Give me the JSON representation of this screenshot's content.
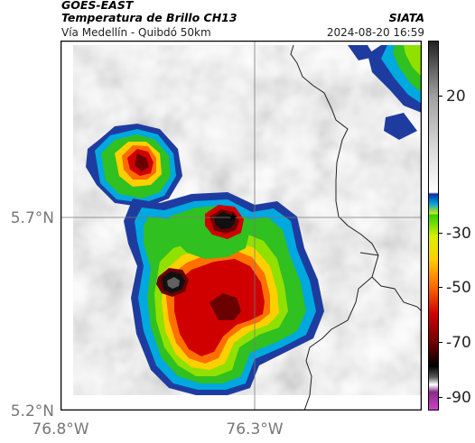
{
  "header": {
    "satellite": "GOES-EAST",
    "product": "Temperatura de Brillo CH13",
    "agency": "SIATA",
    "route": "Vía Medellín - Quibdó 50km",
    "datetime": "2024-08-20 16:59"
  },
  "map": {
    "lat_ticks": [
      {
        "label": "5.7°N",
        "value": 5.7
      },
      {
        "label": "5.2°N",
        "value": 5.2
      }
    ],
    "lon_ticks": [
      {
        "label": "76.8°W",
        "value": -76.8
      },
      {
        "label": "76.3°W",
        "value": -76.3
      }
    ],
    "marker_icon": "star-icon",
    "colors": {
      "background_cloud_gray": "#b5b5b5",
      "cold_top_red": "#d40000",
      "cold_top_black": "#101010"
    }
  },
  "colorbar": {
    "unit_hint": "°C",
    "ticks": [
      {
        "label": "20",
        "value": 20
      },
      {
        "label": "-30",
        "value": -30
      },
      {
        "label": "-50",
        "value": -50
      },
      {
        "label": "-70",
        "value": -70
      },
      {
        "label": "-90",
        "value": -90
      }
    ],
    "range": [
      -95,
      40
    ],
    "colors": [
      "#d048c8",
      "#8a2a8a",
      "#ffffff",
      "#5a5a5a",
      "#000000",
      "#6a0000",
      "#d00000",
      "#ff7000",
      "#ffd000",
      "#d8f000",
      "#30d000",
      "#00a0e0",
      "#1030a0",
      "#ffffff",
      "#bdbdbd",
      "#303030"
    ]
  }
}
